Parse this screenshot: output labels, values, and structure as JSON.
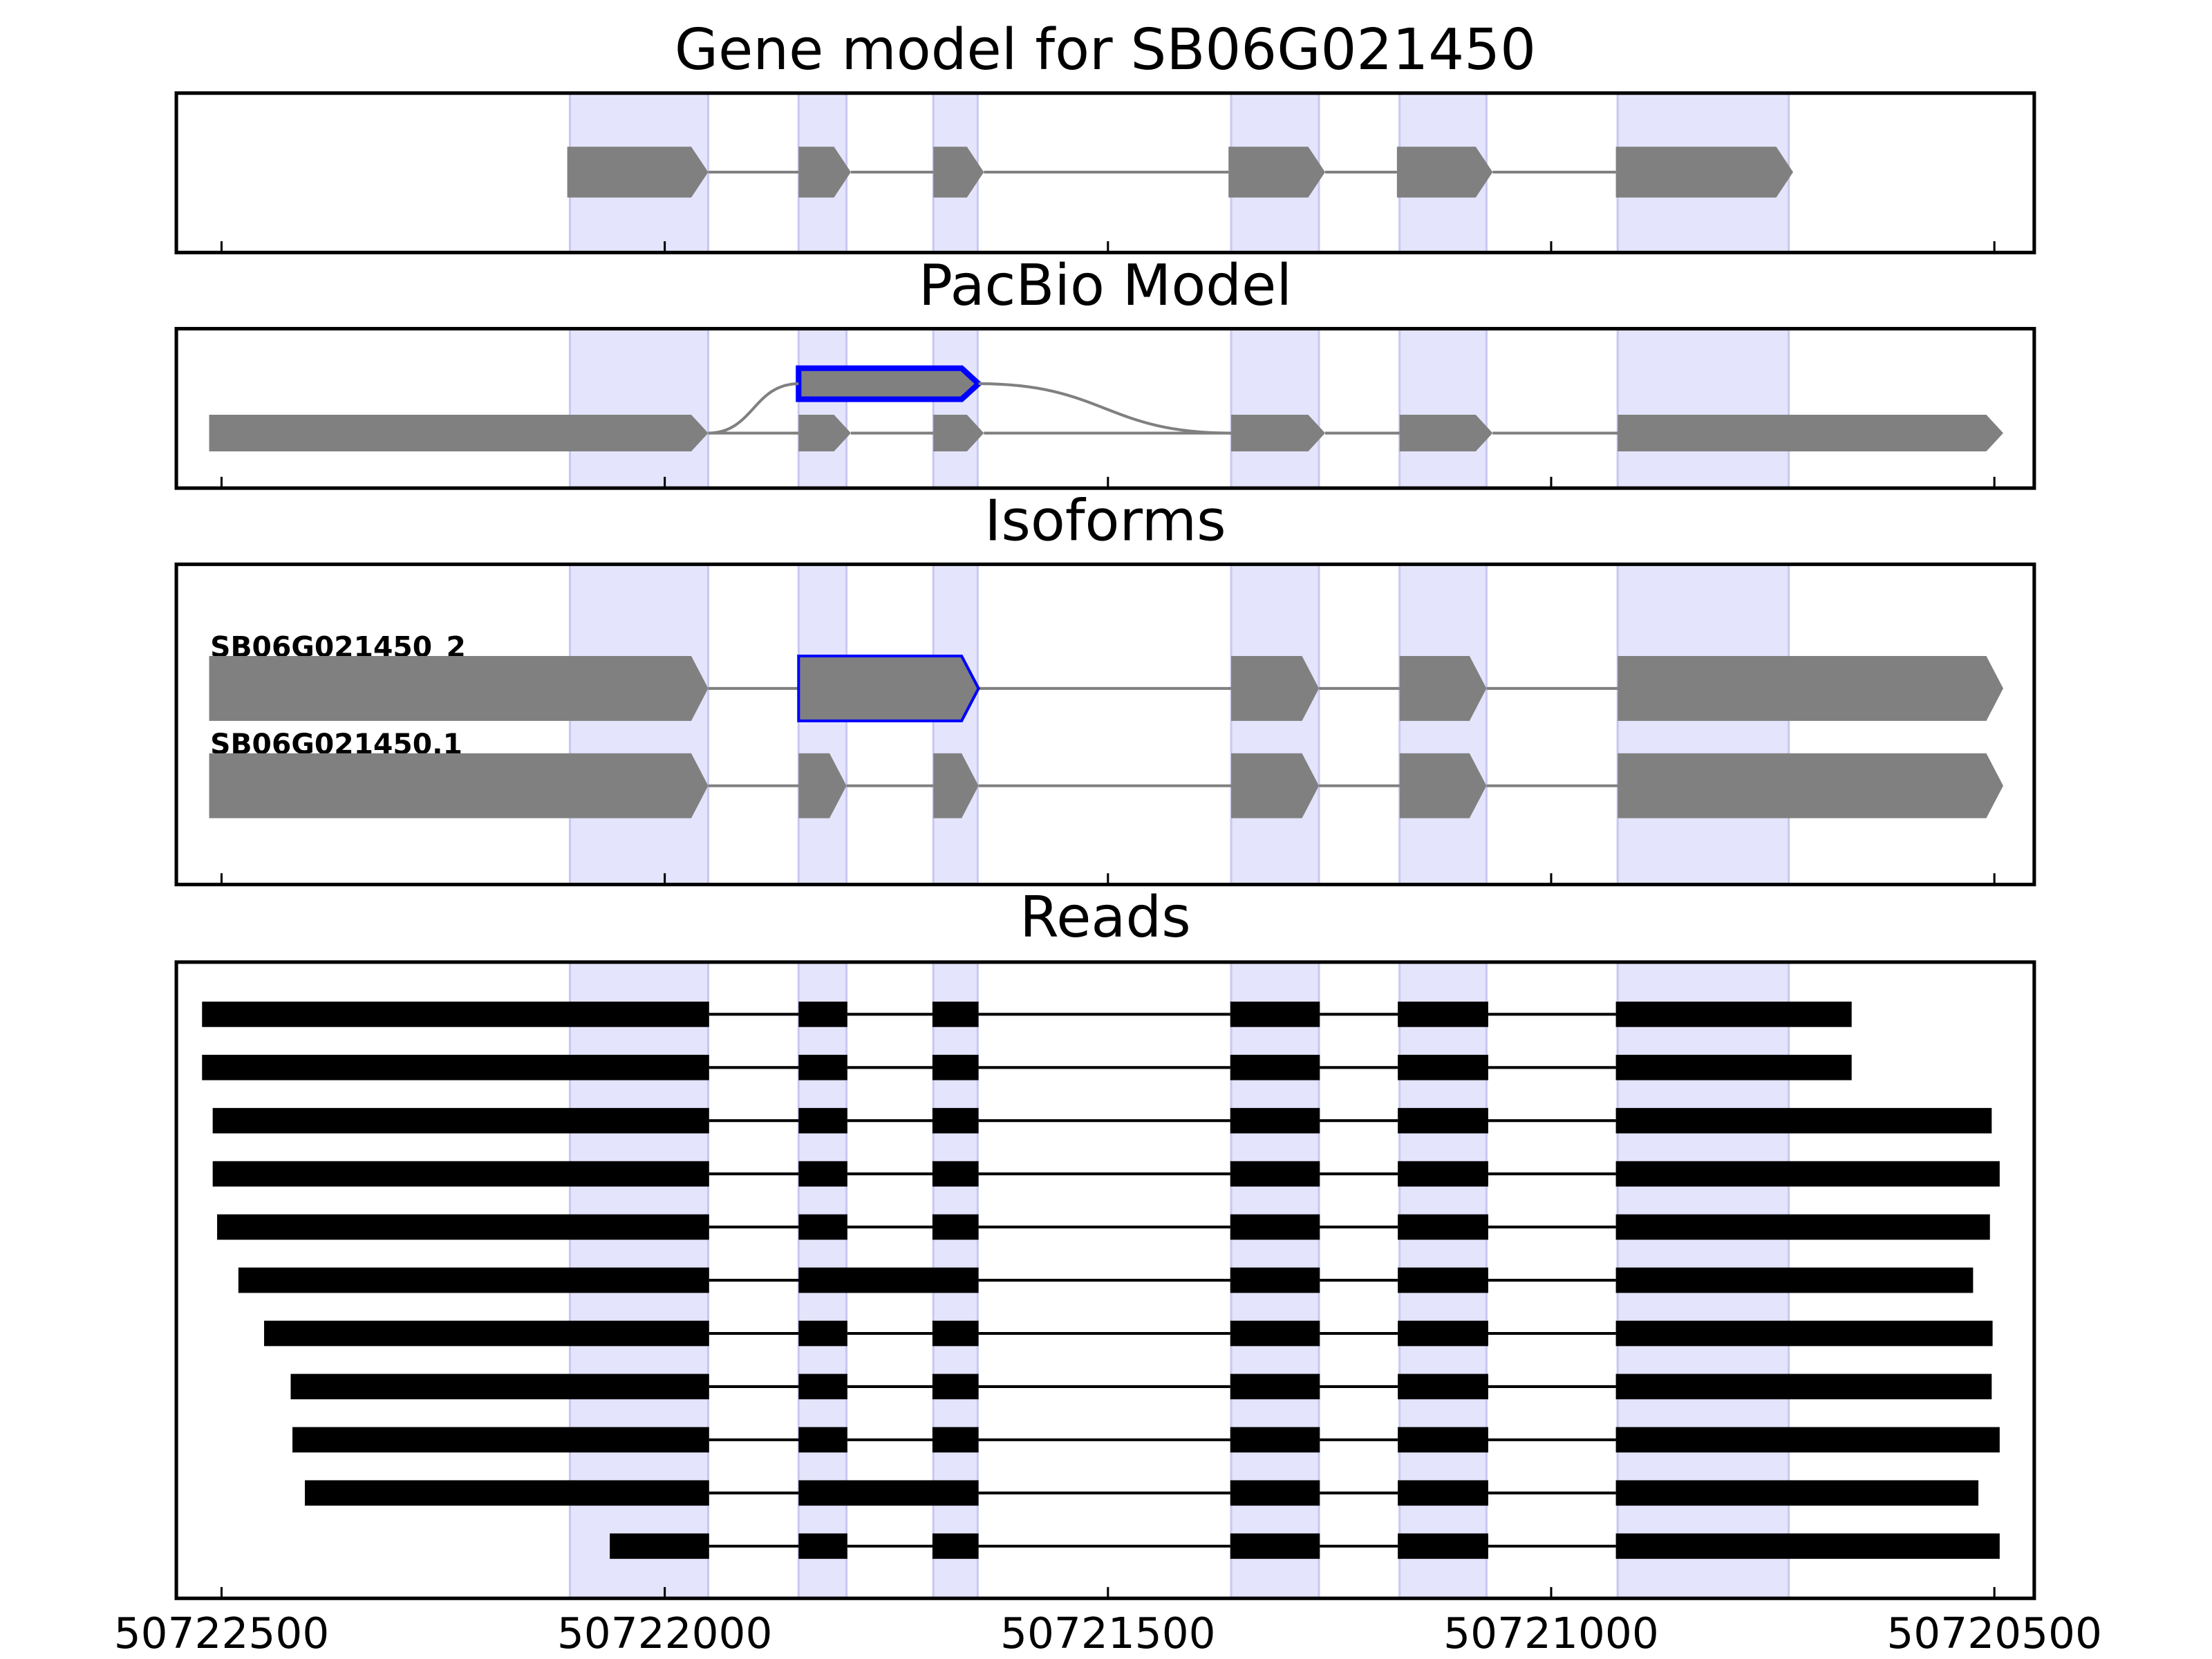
{
  "chart_data": [
    {
      "type": "gene",
      "title": "Gene model for SB06G021450",
      "xlim": [
        50722551,
        50720455
      ],
      "xticks": [
        50722500,
        50722000,
        50721500,
        50721000,
        50720500
      ],
      "highlight_color": "#e4e4fc",
      "exon_color": "#808080",
      "highlights": [
        [
          50722107,
          50721951
        ],
        [
          50721849,
          50721795
        ],
        [
          50721697,
          50721647
        ],
        [
          50721361,
          50721262
        ],
        [
          50721171,
          50721073
        ],
        [
          50720925,
          50720732
        ]
      ],
      "tracks": [
        {
          "exons": [
            [
              50722110,
              50721951
            ],
            [
              50721849,
              50721790
            ],
            [
              50721697,
              50721640
            ],
            [
              50721364,
              50721255
            ],
            [
              50721174,
              50721066
            ],
            [
              50720927,
              50720727
            ]
          ]
        }
      ]
    },
    {
      "type": "pacbio",
      "title": "PacBio Model",
      "xlim": [
        50722551,
        50720455
      ],
      "xticks": [
        50722500,
        50722000,
        50721500,
        50721000,
        50720500
      ],
      "highlight_color": "#e4e4fc",
      "exon_color": "#808080",
      "outline_color": "#0000ff",
      "highlights": [
        [
          50722107,
          50721951
        ],
        [
          50721849,
          50721795
        ],
        [
          50721697,
          50721647
        ],
        [
          50721361,
          50721262
        ],
        [
          50721171,
          50721073
        ],
        [
          50720925,
          50720732
        ]
      ],
      "tracks": [
        {
          "exons": [
            [
              50722514,
              50721951
            ],
            [
              50721849,
              50721790
            ],
            [
              50721697,
              50721640
            ],
            [
              50721361,
              50721255
            ],
            [
              50721171,
              50721066
            ],
            [
              50720925,
              50720490
            ]
          ]
        },
        {
          "exons": [
            [
              50721849,
              50721646
            ]
          ],
          "outlined": [
            0
          ]
        }
      ]
    },
    {
      "type": "isoforms",
      "title": "Isoforms",
      "xlim": [
        50722551,
        50720455
      ],
      "xticks": [
        50722500,
        50722000,
        50721500,
        50721000,
        50720500
      ],
      "highlight_color": "#e4e4fc",
      "exon_color": "#808080",
      "outline_color": "#0000ff",
      "highlights": [
        [
          50722107,
          50721951
        ],
        [
          50721849,
          50721795
        ],
        [
          50721697,
          50721647
        ],
        [
          50721361,
          50721262
        ],
        [
          50721171,
          50721073
        ],
        [
          50720925,
          50720732
        ]
      ],
      "tracks": [
        {
          "name": "SB06G021450_2",
          "exons": [
            [
              50722514,
              50721951
            ],
            [
              50721849,
              50721646
            ],
            [
              50721361,
              50721262
            ],
            [
              50721171,
              50721073
            ],
            [
              50720925,
              50720490
            ]
          ],
          "outlined": [
            1
          ]
        },
        {
          "name": "SB06G021450.1",
          "exons": [
            [
              50722514,
              50721951
            ],
            [
              50721849,
              50721795
            ],
            [
              50721697,
              50721646
            ],
            [
              50721361,
              50721262
            ],
            [
              50721171,
              50721073
            ],
            [
              50720925,
              50720490
            ]
          ]
        }
      ]
    },
    {
      "type": "reads",
      "title": "Reads",
      "xlim": [
        50722551,
        50720455
      ],
      "xticks": [
        50722500,
        50722000,
        50721500,
        50721000,
        50720500
      ],
      "highlight_color": "#e4e4fc",
      "exon_color": "#000000",
      "highlights": [
        [
          50722107,
          50721951
        ],
        [
          50721849,
          50721795
        ],
        [
          50721697,
          50721647
        ],
        [
          50721361,
          50721262
        ],
        [
          50721171,
          50721073
        ],
        [
          50720925,
          50720732
        ]
      ],
      "tracks": [
        {
          "exons": [
            [
              50722522,
              50721950
            ],
            [
              50721849,
              50721794
            ],
            [
              50721698,
              50721646
            ],
            [
              50721362,
              50721261
            ],
            [
              50721173,
              50721071
            ],
            [
              50720927,
              50720661
            ]
          ]
        },
        {
          "exons": [
            [
              50722522,
              50721950
            ],
            [
              50721849,
              50721794
            ],
            [
              50721698,
              50721646
            ],
            [
              50721362,
              50721261
            ],
            [
              50721173,
              50721071
            ],
            [
              50720927,
              50720661
            ]
          ]
        },
        {
          "exons": [
            [
              50722510,
              50721950
            ],
            [
              50721849,
              50721794
            ],
            [
              50721698,
              50721646
            ],
            [
              50721362,
              50721261
            ],
            [
              50721173,
              50721071
            ],
            [
              50720927,
              50720503
            ]
          ]
        },
        {
          "exons": [
            [
              50722510,
              50721950
            ],
            [
              50721849,
              50721794
            ],
            [
              50721698,
              50721646
            ],
            [
              50721362,
              50721261
            ],
            [
              50721173,
              50721071
            ],
            [
              50720927,
              50720494
            ]
          ]
        },
        {
          "exons": [
            [
              50722505,
              50721950
            ],
            [
              50721849,
              50721794
            ],
            [
              50721698,
              50721646
            ],
            [
              50721362,
              50721261
            ],
            [
              50721173,
              50721071
            ],
            [
              50720927,
              50720505
            ]
          ]
        },
        {
          "exons": [
            [
              50722481,
              50721950
            ],
            [
              50721849,
              50721646
            ],
            [
              50721362,
              50721261
            ],
            [
              50721173,
              50721071
            ],
            [
              50720927,
              50720524
            ]
          ]
        },
        {
          "exons": [
            [
              50722452,
              50721950
            ],
            [
              50721849,
              50721794
            ],
            [
              50721698,
              50721646
            ],
            [
              50721362,
              50721261
            ],
            [
              50721173,
              50721071
            ],
            [
              50720927,
              50720502
            ]
          ]
        },
        {
          "exons": [
            [
              50722422,
              50721950
            ],
            [
              50721849,
              50721794
            ],
            [
              50721698,
              50721646
            ],
            [
              50721362,
              50721261
            ],
            [
              50721173,
              50721071
            ],
            [
              50720927,
              50720503
            ]
          ]
        },
        {
          "exons": [
            [
              50722420,
              50721950
            ],
            [
              50721849,
              50721794
            ],
            [
              50721698,
              50721646
            ],
            [
              50721362,
              50721261
            ],
            [
              50721173,
              50721071
            ],
            [
              50720927,
              50720494
            ]
          ]
        },
        {
          "exons": [
            [
              50722406,
              50721950
            ],
            [
              50721849,
              50721646
            ],
            [
              50721362,
              50721261
            ],
            [
              50721173,
              50721071
            ],
            [
              50720927,
              50720518
            ]
          ]
        },
        {
          "exons": [
            [
              50722062,
              50721950
            ],
            [
              50721849,
              50721794
            ],
            [
              50721698,
              50721646
            ],
            [
              50721362,
              50721261
            ],
            [
              50721173,
              50721071
            ],
            [
              50720927,
              50720494
            ]
          ]
        }
      ]
    }
  ]
}
